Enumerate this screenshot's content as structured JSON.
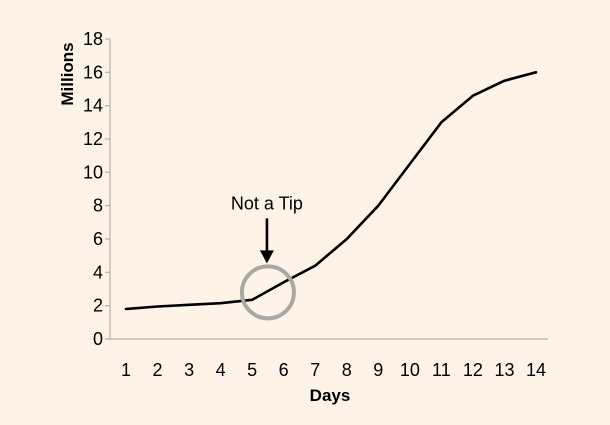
{
  "chart_data": {
    "type": "line",
    "title": "",
    "xlabel": "Days",
    "ylabel": "Millions",
    "xlim": [
      1,
      14
    ],
    "ylim": [
      0,
      18
    ],
    "x_ticks": [
      1,
      2,
      3,
      4,
      5,
      6,
      7,
      8,
      9,
      10,
      11,
      12,
      13,
      14
    ],
    "y_ticks": [
      0,
      2,
      4,
      6,
      8,
      10,
      12,
      14,
      16,
      18
    ],
    "grid": false,
    "series": [
      {
        "x": [
          1,
          2,
          3,
          4,
          5,
          6,
          7,
          8,
          9,
          10,
          11,
          12,
          13,
          14
        ],
        "y": [
          1.8,
          1.95,
          2.05,
          2.15,
          2.35,
          3.4,
          4.4,
          6.0,
          8.0,
          10.5,
          13.0,
          14.6,
          15.5,
          16.0
        ],
        "color": "#000000"
      }
    ],
    "annotations": [
      {
        "text": "Not a Tip",
        "x": 5.5,
        "y": 2.8,
        "marker": "circle",
        "arrow": "down"
      }
    ],
    "annotation_circle_color": "#a9a9a4"
  }
}
